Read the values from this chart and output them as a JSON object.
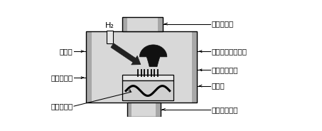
{
  "bg_color": "#ffffff",
  "label_left": [
    "处理室",
    "石墨样品台",
    "石墨加热器"
  ],
  "label_right": [
    "接微波系统",
    "等离子体辉光区域",
    "碳纳米管阵列",
    "冷却水",
    "接抽真空系统"
  ],
  "h2_label": "H₂",
  "gray_outer": "#a8a8a8",
  "gray_mid": "#c0c0c0",
  "gray_inner": "#d8d8d8",
  "gray_light": "#e8e8e8",
  "black": "#000000",
  "dark_arrow": "#222222",
  "heater_box": "#d0d0d0",
  "line_color": "#000000",
  "font_size_label": 7.5,
  "font_size_h2": 8
}
